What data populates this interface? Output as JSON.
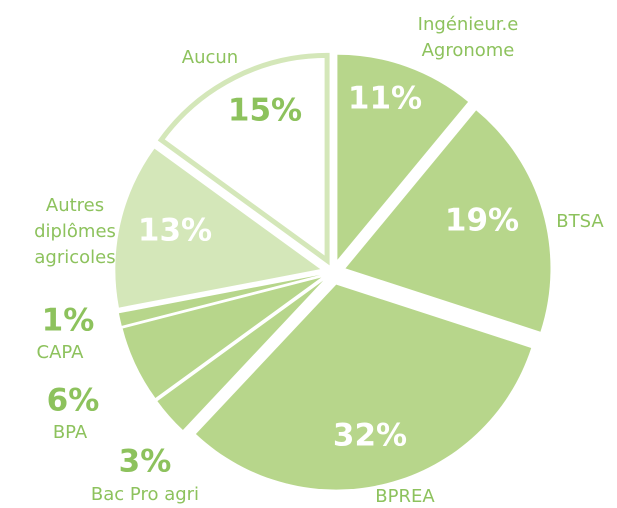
{
  "chart_data": {
    "type": "pie",
    "categories": [
      "Ingénieur.e Agronome",
      "BTSA",
      "BPREA",
      "Bac Pro agri",
      "BPA",
      "CAPA",
      "Autres diplômes agricoles",
      "Aucun"
    ],
    "values": [
      11,
      19,
      32,
      3,
      6,
      1,
      13,
      15
    ],
    "value_labels": [
      "11%",
      "19%",
      "32%",
      "3%",
      "6%",
      "1%",
      "13%",
      "15%"
    ],
    "colors": [
      "#b7d68b",
      "#b7d68b",
      "#b7d68b",
      "#b7d68b",
      "#b7d68b",
      "#b7d68b",
      "#d4e7b9",
      "#ffffff"
    ]
  }
}
